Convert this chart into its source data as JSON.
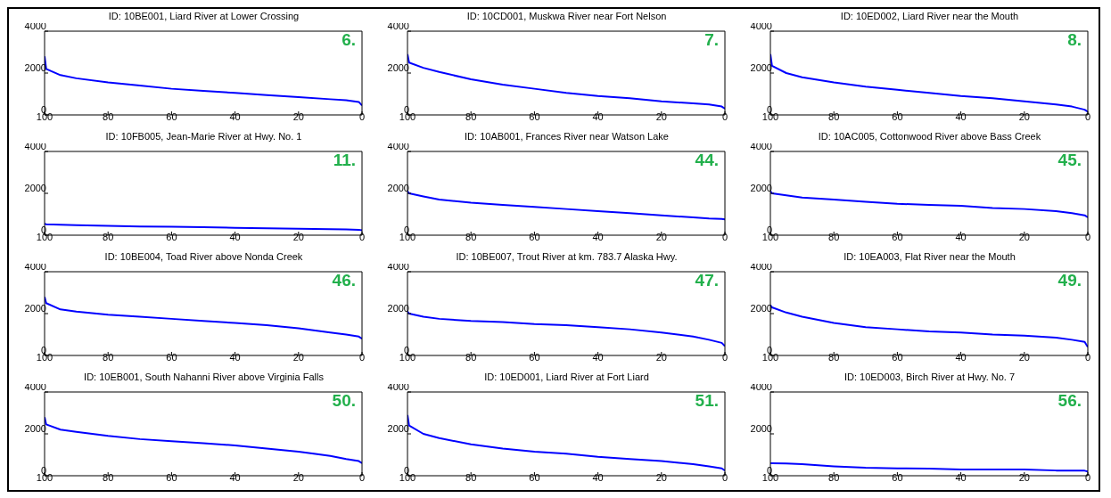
{
  "chart_data": [
    {
      "type": "line",
      "title": "ID: 10BE001, Liard River at Lower Crossing",
      "annotations": [
        "6."
      ],
      "x": [
        100,
        99.5,
        95,
        90,
        80,
        70,
        60,
        50,
        40,
        30,
        20,
        10,
        5,
        1,
        0
      ],
      "series": [
        {
          "color": "#0000ff",
          "values": [
            2800,
            2200,
            1900,
            1750,
            1550,
            1400,
            1250,
            1150,
            1050,
            950,
            850,
            750,
            700,
            620,
            450
          ]
        }
      ],
      "xlim": [
        100,
        0
      ],
      "xticks": [
        100,
        80,
        60,
        40,
        20,
        0
      ],
      "ylim": [
        0,
        4000
      ],
      "yticks": [
        0,
        2000,
        4000
      ],
      "marker": "none"
    },
    {
      "type": "line",
      "title": "ID: 10CD001, Muskwa River near Fort Nelson",
      "annotations": [
        "7."
      ],
      "x": [
        100,
        99.5,
        95,
        90,
        80,
        70,
        60,
        50,
        40,
        30,
        20,
        10,
        5,
        1,
        0
      ],
      "series": [
        {
          "color": "#0000ff",
          "values": [
            2900,
            2500,
            2250,
            2050,
            1700,
            1450,
            1250,
            1050,
            900,
            800,
            650,
            550,
            500,
            400,
            300
          ]
        }
      ],
      "xlim": [
        100,
        0
      ],
      "xticks": [
        100,
        80,
        60,
        40,
        20,
        0
      ],
      "ylim": [
        0,
        4000
      ],
      "yticks": [
        0,
        2000,
        4000
      ],
      "marker": "none"
    },
    {
      "type": "line",
      "title": "ID: 10ED002, Liard River near the Mouth",
      "annotations": [
        "8."
      ],
      "x": [
        100,
        99.5,
        95,
        90,
        80,
        70,
        60,
        50,
        40,
        30,
        20,
        10,
        5,
        1,
        0
      ],
      "series": [
        {
          "color": "#0000ff",
          "values": [
            2900,
            2350,
            2000,
            1800,
            1550,
            1350,
            1200,
            1050,
            900,
            800,
            650,
            500,
            400,
            250,
            150
          ]
        }
      ],
      "xlim": [
        100,
        0
      ],
      "xticks": [
        100,
        80,
        60,
        40,
        20,
        0
      ],
      "ylim": [
        0,
        4000
      ],
      "yticks": [
        0,
        2000,
        4000
      ],
      "marker": "none"
    },
    {
      "type": "line",
      "title": "ID: 10FB005, Jean-Marie River at Hwy. No. 1",
      "annotations": [
        "11."
      ],
      "x": [
        100,
        99.5,
        95,
        90,
        80,
        70,
        60,
        50,
        40,
        30,
        20,
        10,
        5,
        1,
        0
      ],
      "series": [
        {
          "color": "#0000ff",
          "values": [
            550,
            520,
            500,
            480,
            450,
            420,
            400,
            380,
            350,
            330,
            310,
            290,
            280,
            260,
            230
          ]
        }
      ],
      "xlim": [
        100,
        0
      ],
      "xticks": [
        100,
        80,
        60,
        40,
        20,
        0
      ],
      "ylim": [
        0,
        4000
      ],
      "yticks": [
        0,
        2000,
        4000
      ],
      "marker": "none"
    },
    {
      "type": "line",
      "title": "ID: 10AB001, Frances River near Watson Lake",
      "annotations": [
        "44."
      ],
      "x": [
        100,
        99.5,
        95,
        90,
        80,
        70,
        60,
        50,
        40,
        30,
        20,
        10,
        5,
        1,
        0
      ],
      "series": [
        {
          "color": "#0000ff",
          "values": [
            2100,
            2000,
            1850,
            1700,
            1550,
            1450,
            1350,
            1250,
            1150,
            1050,
            950,
            850,
            800,
            780,
            750
          ]
        }
      ],
      "xlim": [
        100,
        0
      ],
      "xticks": [
        100,
        80,
        60,
        40,
        20,
        0
      ],
      "ylim": [
        0,
        4000
      ],
      "yticks": [
        0,
        2000,
        4000
      ],
      "marker": "none"
    },
    {
      "type": "line",
      "title": "ID: 10AC005, Cottonwood River above Bass Creek",
      "annotations": [
        "45."
      ],
      "x": [
        100,
        99.5,
        95,
        90,
        80,
        70,
        60,
        50,
        40,
        30,
        20,
        10,
        5,
        1,
        0
      ],
      "series": [
        {
          "color": "#0000ff",
          "values": [
            2100,
            2000,
            1900,
            1800,
            1700,
            1600,
            1500,
            1450,
            1400,
            1300,
            1250,
            1150,
            1050,
            950,
            850
          ]
        }
      ],
      "xlim": [
        100,
        0
      ],
      "xticks": [
        100,
        80,
        60,
        40,
        20,
        0
      ],
      "ylim": [
        0,
        4000
      ],
      "yticks": [
        0,
        2000,
        4000
      ],
      "marker": "none"
    },
    {
      "type": "line",
      "title": "ID: 10BE004, Toad River above Nonda Creek",
      "annotations": [
        "46."
      ],
      "x": [
        100,
        99.5,
        95,
        90,
        80,
        70,
        60,
        50,
        40,
        30,
        20,
        10,
        5,
        1,
        0
      ],
      "series": [
        {
          "color": "#0000ff",
          "values": [
            2800,
            2500,
            2200,
            2100,
            1950,
            1850,
            1750,
            1650,
            1550,
            1450,
            1300,
            1100,
            1000,
            900,
            800
          ]
        }
      ],
      "xlim": [
        100,
        0
      ],
      "xticks": [
        100,
        80,
        60,
        40,
        20,
        0
      ],
      "ylim": [
        0,
        4000
      ],
      "yticks": [
        0,
        2000,
        4000
      ],
      "marker": "none"
    },
    {
      "type": "line",
      "title": "ID: 10BE007, Trout River at km. 783.7 Alaska Hwy.",
      "annotations": [
        "47."
      ],
      "x": [
        100,
        99.5,
        95,
        90,
        80,
        70,
        60,
        50,
        40,
        30,
        20,
        10,
        5,
        1,
        0
      ],
      "series": [
        {
          "color": "#0000ff",
          "values": [
            2100,
            2000,
            1850,
            1750,
            1650,
            1600,
            1500,
            1450,
            1350,
            1250,
            1100,
            900,
            750,
            600,
            450
          ]
        }
      ],
      "xlim": [
        100,
        0
      ],
      "xticks": [
        100,
        80,
        60,
        40,
        20,
        0
      ],
      "ylim": [
        0,
        4000
      ],
      "yticks": [
        0,
        2000,
        4000
      ],
      "marker": "none"
    },
    {
      "type": "line",
      "title": "ID: 10EA003, Flat River near the Mouth",
      "annotations": [
        "49."
      ],
      "x": [
        100,
        99.5,
        95,
        90,
        80,
        70,
        60,
        50,
        40,
        30,
        20,
        10,
        5,
        1,
        0
      ],
      "series": [
        {
          "color": "#0000ff",
          "values": [
            2400,
            2300,
            2050,
            1850,
            1550,
            1350,
            1250,
            1150,
            1100,
            1000,
            950,
            850,
            750,
            650,
            400
          ]
        }
      ],
      "xlim": [
        100,
        0
      ],
      "xticks": [
        100,
        80,
        60,
        40,
        20,
        0
      ],
      "ylim": [
        0,
        4000
      ],
      "yticks": [
        0,
        2000,
        4000
      ],
      "marker": "none"
    },
    {
      "type": "line",
      "title": "ID: 10EB001, South Nahanni River above Virginia Falls",
      "annotations": [
        "50."
      ],
      "x": [
        100,
        99.5,
        95,
        90,
        80,
        70,
        60,
        50,
        40,
        30,
        20,
        10,
        5,
        1,
        0
      ],
      "series": [
        {
          "color": "#0000ff",
          "values": [
            2800,
            2450,
            2200,
            2100,
            1900,
            1750,
            1650,
            1550,
            1450,
            1300,
            1150,
            950,
            800,
            700,
            600
          ]
        }
      ],
      "xlim": [
        100,
        0
      ],
      "xticks": [
        100,
        80,
        60,
        40,
        20,
        0
      ],
      "ylim": [
        0,
        4000
      ],
      "yticks": [
        0,
        2000,
        4000
      ],
      "marker": "none"
    },
    {
      "type": "line",
      "title": "ID: 10ED001, Liard River at Fort Liard",
      "annotations": [
        "51."
      ],
      "x": [
        100,
        99.5,
        95,
        90,
        80,
        70,
        60,
        50,
        40,
        30,
        20,
        10,
        5,
        1,
        0
      ],
      "series": [
        {
          "color": "#0000ff",
          "values": [
            2900,
            2400,
            2000,
            1800,
            1500,
            1300,
            1150,
            1050,
            900,
            800,
            700,
            550,
            450,
            350,
            250
          ]
        }
      ],
      "xlim": [
        100,
        0
      ],
      "xticks": [
        100,
        80,
        60,
        40,
        20,
        0
      ],
      "ylim": [
        0,
        4000
      ],
      "yticks": [
        0,
        2000,
        4000
      ],
      "marker": "none"
    },
    {
      "type": "line",
      "title": "ID: 10ED003, Birch River at Hwy. No. 7",
      "annotations": [
        "56."
      ],
      "x": [
        100,
        99.5,
        95,
        90,
        80,
        70,
        60,
        50,
        40,
        30,
        20,
        10,
        5,
        1,
        0
      ],
      "series": [
        {
          "color": "#0000ff",
          "values": [
            600,
            600,
            580,
            550,
            450,
            380,
            350,
            340,
            300,
            300,
            300,
            250,
            250,
            240,
            200
          ]
        }
      ],
      "xlim": [
        100,
        0
      ],
      "xticks": [
        100,
        80,
        60,
        40,
        20,
        0
      ],
      "ylim": [
        0,
        4000
      ],
      "yticks": [
        0,
        2000,
        4000
      ],
      "marker": "none"
    }
  ]
}
